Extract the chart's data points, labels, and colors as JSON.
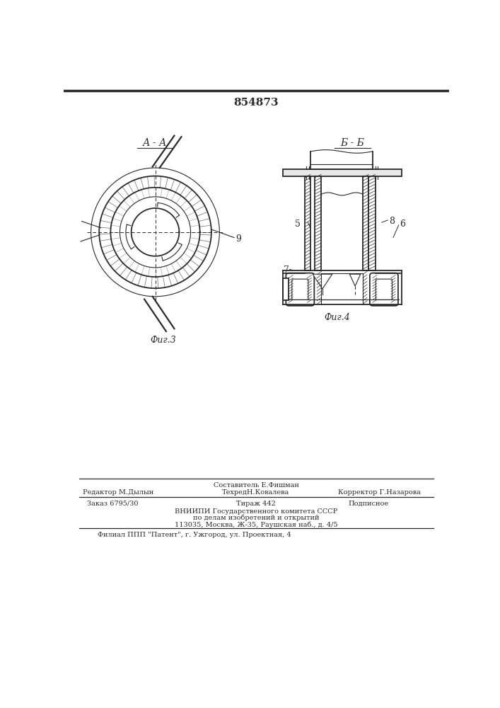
{
  "patent_number": "854873",
  "bg_color": "#ffffff",
  "line_color": "#2a2a2a",
  "fig3_label": "А - А",
  "fig3_caption": "Фиг.3",
  "fig4_label": "Б - Б",
  "fig4_caption": "Фиг.4",
  "footer": {
    "line0_center": "Составитель Е.Фишман",
    "line1_left": "Редактор М.Дылын",
    "line1_center": "ТехредН.Ковалева",
    "line1_right": "Корректор Г.Назарова",
    "line2_left": "Заказ 6795/30",
    "line2_center": "Тираж 442",
    "line2_right": "Подписное",
    "line3": "ВНИИПИ Государственного комитета СССР",
    "line4": "по делам изобретений и открытий",
    "line5": "113035, Москва, Ж-35, Раушская наб., д. 4/5",
    "line6": "Филиал ППП \"Патент\", г. Ужгород, ул. Проектная, 4"
  }
}
